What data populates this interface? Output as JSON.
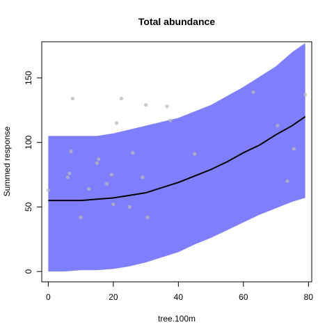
{
  "chart_data": {
    "type": "line",
    "title": "Total abundance",
    "xlabel": "tree.100m",
    "ylabel": "Summed response",
    "xlim": [
      -2,
      81
    ],
    "ylim": [
      -8,
      178
    ],
    "x_ticks": [
      0,
      20,
      40,
      60,
      80
    ],
    "y_ticks": [
      0,
      50,
      100,
      150
    ],
    "x_tick_labels": [
      "0",
      "20",
      "40",
      "60",
      "80"
    ],
    "y_tick_labels": [
      "0",
      "50",
      "100",
      "150"
    ],
    "grid": false,
    "legend": "none",
    "colors": {
      "band": "#7f7ffe",
      "line": "#000000",
      "points": "#b8b8b8"
    },
    "fit": {
      "x": [
        0,
        5,
        10,
        15,
        20,
        25,
        30,
        35,
        40,
        45,
        50,
        55,
        60,
        65,
        70,
        75,
        79
      ],
      "y": [
        55,
        55,
        55,
        56,
        57,
        59,
        61,
        65,
        69,
        74,
        79,
        85,
        92,
        98,
        106,
        113,
        120
      ],
      "lower": [
        0,
        0,
        1,
        1,
        2,
        4,
        7,
        11,
        15,
        21,
        26,
        32,
        38,
        44,
        49,
        54,
        57
      ],
      "upper": [
        105,
        105,
        105,
        105,
        107,
        110,
        113,
        116,
        119,
        124,
        129,
        136,
        143,
        151,
        159,
        170,
        177
      ]
    },
    "points": {
      "x": [
        0,
        6,
        6.5,
        7,
        7.5,
        10,
        12.5,
        15,
        15.5,
        18,
        19.5,
        20,
        21,
        22.5,
        25,
        26,
        29,
        30,
        30.5,
        36.5,
        37.5,
        45,
        63,
        70.5,
        73.5,
        75.5,
        79
      ],
      "y": [
        63,
        73,
        76,
        93,
        134,
        42,
        64,
        84,
        87,
        68,
        75,
        52,
        115,
        134,
        50,
        92,
        73,
        129,
        42,
        128,
        117,
        91,
        139,
        113,
        70,
        95,
        137
      ]
    }
  }
}
